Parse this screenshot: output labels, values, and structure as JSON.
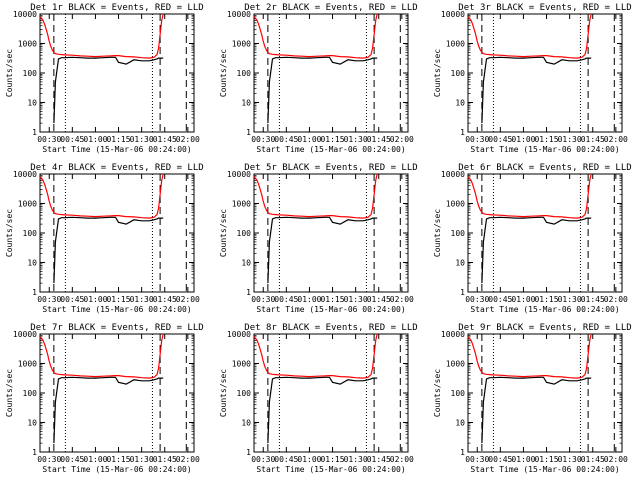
{
  "colors": {
    "events": "#000000",
    "lld": "#ff0000",
    "background": "#ffffff",
    "axis": "#000000"
  },
  "chart_data": [
    {
      "type": "line",
      "title": "Det 1r  BLACK = Events, RED = LLD"
    },
    {
      "type": "line",
      "title": "Det 2r  BLACK = Events, RED = LLD"
    },
    {
      "type": "line",
      "title": "Det 3r  BLACK = Events, RED = LLD"
    },
    {
      "type": "line",
      "title": "Det 4r  BLACK = Events, RED = LLD"
    },
    {
      "type": "line",
      "title": "Det 5r  BLACK = Events, RED = LLD"
    },
    {
      "type": "line",
      "title": "Det 6r  BLACK = Events, RED = LLD"
    },
    {
      "type": "line",
      "title": "Det 7r  BLACK = Events, RED = LLD"
    },
    {
      "type": "line",
      "title": "Det 8r  BLACK = Events, RED = LLD"
    },
    {
      "type": "line",
      "title": "Det 9r  BLACK = Events, RED = LLD"
    }
  ],
  "shared": {
    "ylabel": "Counts/sec",
    "xlabel": "Start Time (15-Mar-06 00:24:00)",
    "y_scale": "log",
    "ylim": [
      1,
      10000
    ],
    "y_ticks": [
      "1",
      "10",
      "100",
      "1000",
      "10000"
    ],
    "x_ticks": [
      "00:30",
      "00:45",
      "01:00",
      "01:15",
      "01:30",
      "01:45",
      "02:00"
    ],
    "xlim_minutes": [
      24,
      124
    ],
    "x_tick_minutes": [
      30,
      45,
      60,
      75,
      90,
      105,
      120
    ],
    "dashed_markers_minutes": [
      33,
      102,
      119
    ],
    "dotted_markers_minutes": [
      40.5,
      97
    ],
    "time_minutes": [
      24,
      25,
      26,
      27,
      28,
      29,
      30,
      31,
      32,
      33,
      34,
      36,
      38,
      40,
      45,
      50,
      55,
      60,
      65,
      70,
      73,
      75,
      80,
      85,
      90,
      95,
      98,
      100,
      101,
      102,
      103,
      104
    ],
    "lld_typical": [
      8000,
      7000,
      6000,
      4500,
      3000,
      2000,
      1200,
      800,
      600,
      500,
      450,
      430,
      420,
      410,
      400,
      380,
      370,
      360,
      370,
      380,
      390,
      390,
      360,
      350,
      330,
      320,
      340,
      420,
      700,
      2000,
      6000,
      10000
    ],
    "events_typical": [
      null,
      null,
      null,
      null,
      null,
      null,
      null,
      null,
      null,
      2,
      50,
      300,
      330,
      330,
      340,
      330,
      320,
      320,
      330,
      340,
      340,
      230,
      200,
      280,
      260,
      260,
      280,
      300,
      320,
      320,
      320,
      320
    ]
  }
}
